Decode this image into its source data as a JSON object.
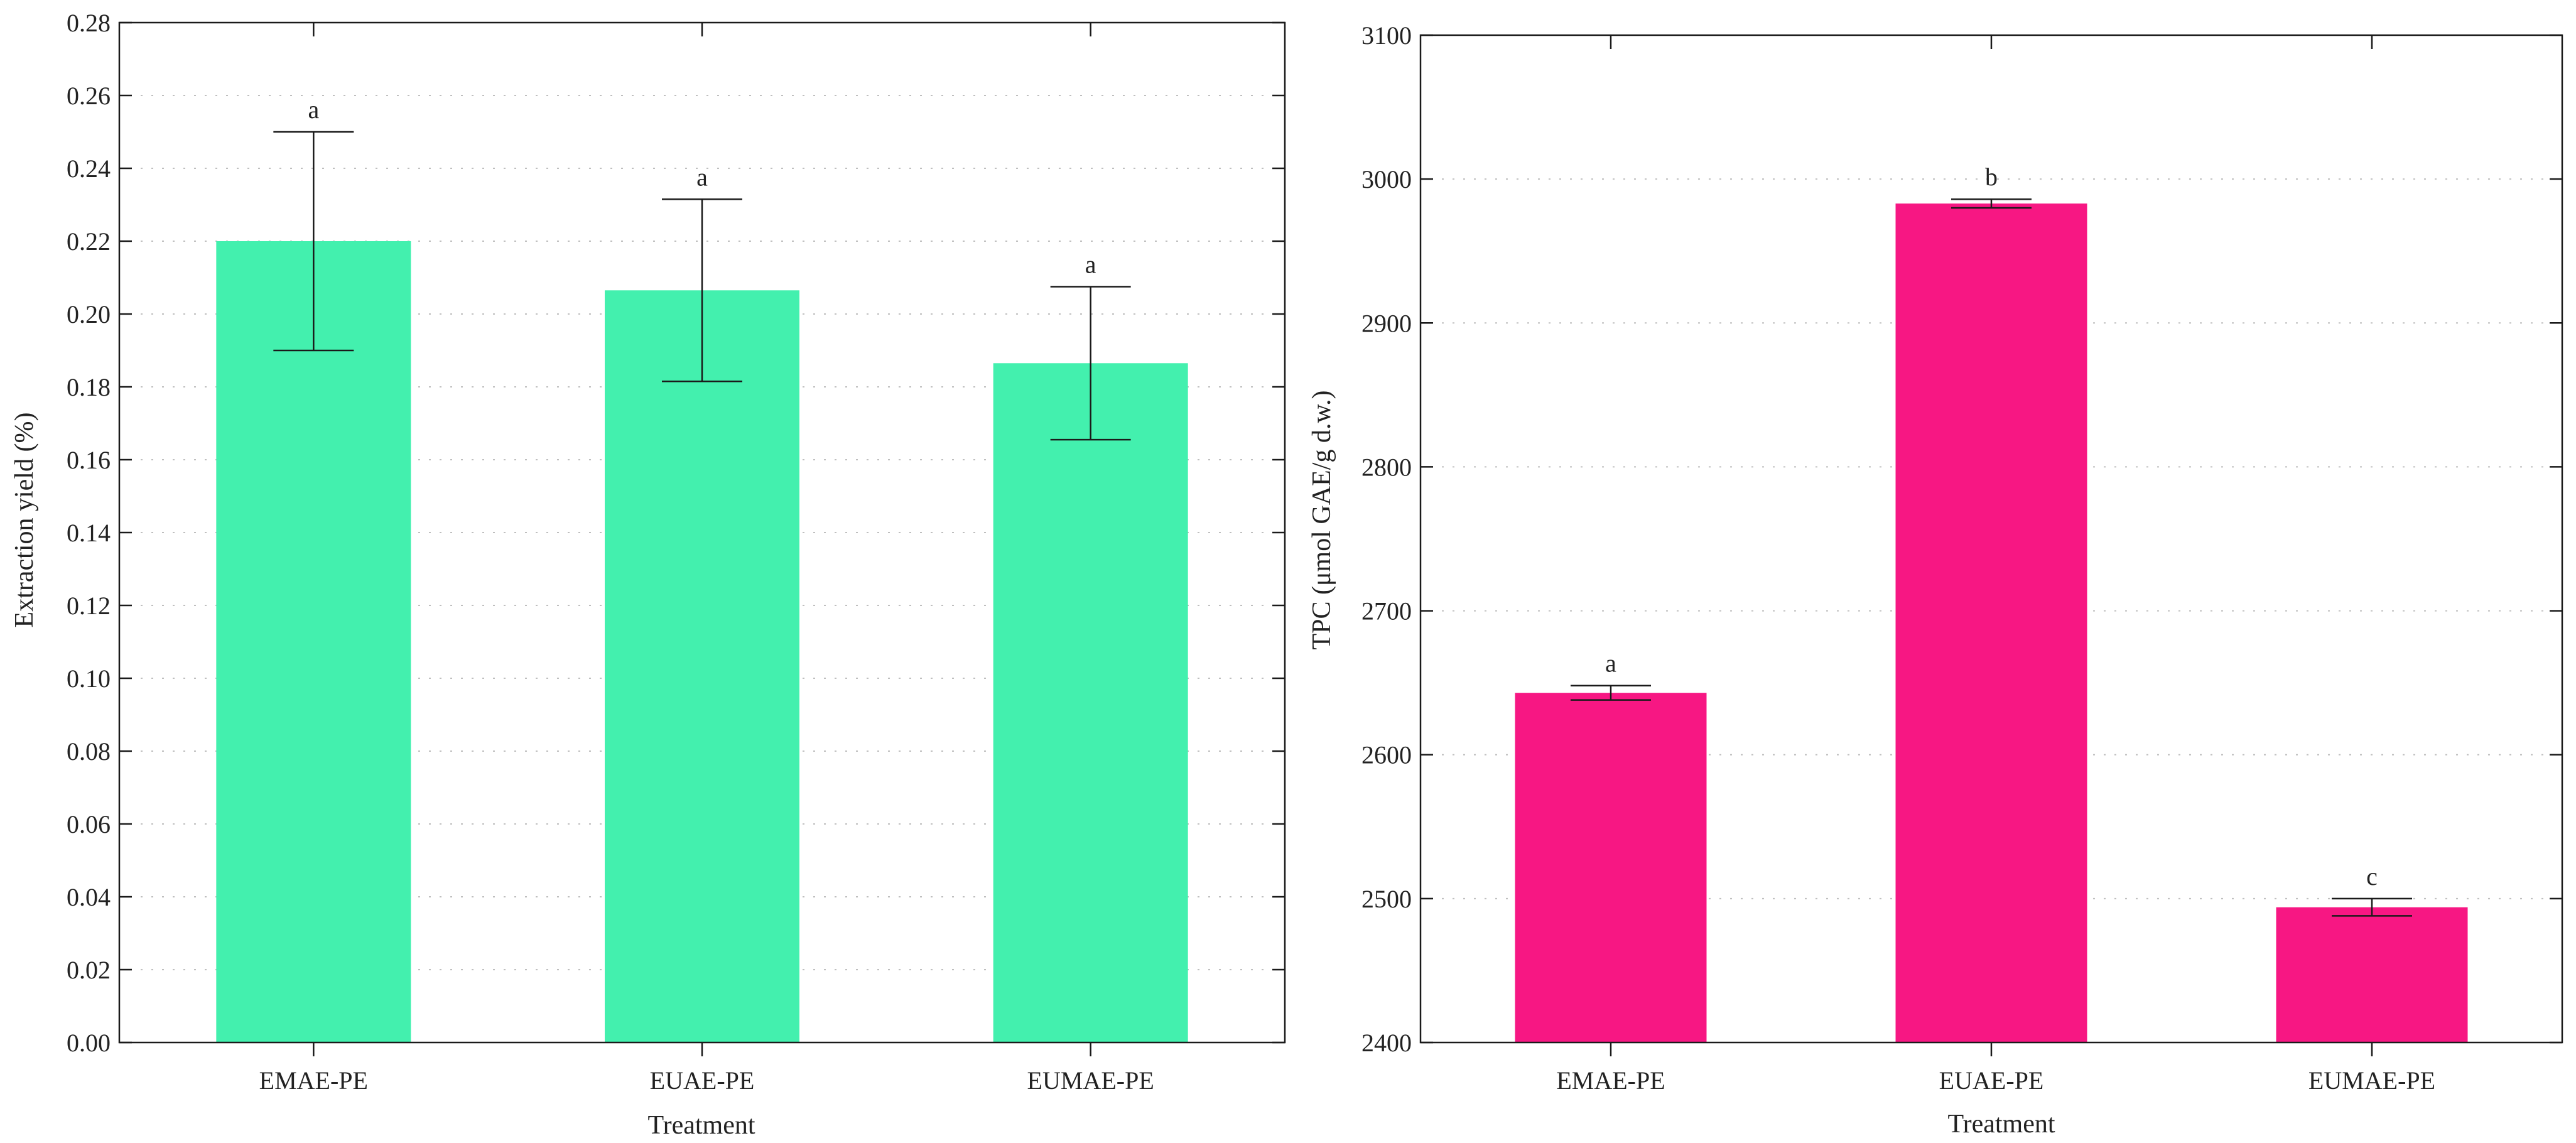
{
  "chart_data": [
    {
      "type": "bar",
      "title": "",
      "xlabel": "Treatment",
      "ylabel": "Extraction yield (%)",
      "categories": [
        "EMAE-PE",
        "EUAE-PE",
        "EUMAE-PE"
      ],
      "values": [
        0.22,
        0.2065,
        0.1865
      ],
      "errors": [
        0.03,
        0.025,
        0.021
      ],
      "significance": [
        "a",
        "a",
        "a"
      ],
      "ylim": [
        0,
        0.28
      ],
      "yticks": [
        "0.00",
        "0.02",
        "0.04",
        "0.06",
        "0.08",
        "0.10",
        "0.12",
        "0.14",
        "0.16",
        "0.18",
        "0.20",
        "0.22",
        "0.24",
        "0.26",
        "0.28"
      ],
      "color": "#43f0ae",
      "grid": true
    },
    {
      "type": "bar",
      "title": "",
      "xlabel": "Treatment",
      "ylabel": "TPC (μmol GAE/g d.w.)",
      "categories": [
        "EMAE-PE",
        "EUAE-PE",
        "EUMAE-PE"
      ],
      "values": [
        2643,
        2983,
        2494
      ],
      "errors": [
        5,
        3,
        6
      ],
      "significance": [
        "a",
        "b",
        "c"
      ],
      "ylim": [
        2400,
        3100
      ],
      "yticks": [
        "2400",
        "2500",
        "2600",
        "2700",
        "2800",
        "2900",
        "3000",
        "3100"
      ],
      "color": "#f71783",
      "grid": true
    }
  ]
}
